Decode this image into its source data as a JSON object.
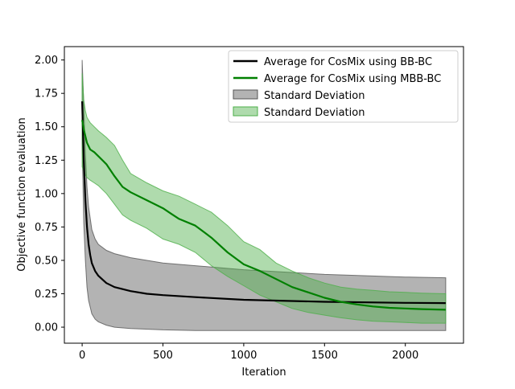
{
  "chart_data": {
    "type": "line",
    "xlabel": "Iteration",
    "ylabel": "Objective function evaluation",
    "xlim": [
      -110,
      2360
    ],
    "ylim": [
      -0.12,
      2.1
    ],
    "xticks": [
      0,
      500,
      1000,
      1500,
      2000
    ],
    "yticks": [
      0.0,
      0.25,
      0.5,
      0.75,
      1.0,
      1.25,
      1.5,
      1.75,
      2.0
    ],
    "xtick_labels": [
      "0",
      "500",
      "1000",
      "1500",
      "2000"
    ],
    "ytick_labels": [
      "0.00",
      "0.25",
      "0.50",
      "0.75",
      "1.00",
      "1.25",
      "1.50",
      "1.75",
      "2.00"
    ],
    "grid": false,
    "legend_position": "top-right",
    "series": [
      {
        "name": "Average for CosMix using BB-BC",
        "color": "#000000",
        "x": [
          0,
          10,
          20,
          30,
          40,
          50,
          60,
          80,
          100,
          150,
          200,
          300,
          400,
          500,
          700,
          1000,
          1500,
          2000,
          2250
        ],
        "values": [
          1.69,
          1.25,
          0.95,
          0.75,
          0.62,
          0.54,
          0.48,
          0.42,
          0.385,
          0.33,
          0.3,
          0.27,
          0.25,
          0.24,
          0.225,
          0.205,
          0.19,
          0.182,
          0.18
        ]
      },
      {
        "name": "Average for CosMix using MBB-BC",
        "color": "#008000",
        "x": [
          0,
          10,
          20,
          30,
          50,
          75,
          100,
          150,
          200,
          250,
          300,
          400,
          500,
          550,
          600,
          700,
          800,
          900,
          1000,
          1100,
          1200,
          1300,
          1400,
          1500,
          1600,
          1700,
          1800,
          1900,
          2000,
          2100,
          2250
        ],
        "values": [
          1.55,
          1.48,
          1.43,
          1.38,
          1.33,
          1.31,
          1.28,
          1.22,
          1.13,
          1.05,
          1.01,
          0.95,
          0.89,
          0.85,
          0.81,
          0.76,
          0.67,
          0.56,
          0.47,
          0.42,
          0.36,
          0.3,
          0.26,
          0.22,
          0.19,
          0.17,
          0.155,
          0.145,
          0.14,
          0.135,
          0.13
        ]
      }
    ],
    "bands": [
      {
        "name": "Standard Deviation",
        "color": "#808080",
        "x": [
          0,
          10,
          20,
          30,
          40,
          60,
          80,
          100,
          150,
          200,
          300,
          500,
          700,
          1000,
          1500,
          2000,
          2250
        ],
        "upper": [
          2.0,
          1.66,
          1.3,
          1.05,
          0.9,
          0.73,
          0.66,
          0.62,
          0.575,
          0.55,
          0.52,
          0.48,
          0.46,
          0.43,
          0.395,
          0.375,
          0.37
        ],
        "lower": [
          1.38,
          0.78,
          0.5,
          0.3,
          0.2,
          0.1,
          0.06,
          0.04,
          0.015,
          0.0,
          -0.01,
          -0.02,
          -0.025,
          -0.025,
          -0.025,
          -0.025,
          -0.025
        ]
      },
      {
        "name": "Standard Deviation",
        "color": "#4daf4a",
        "x": [
          0,
          10,
          20,
          30,
          50,
          75,
          100,
          150,
          200,
          250,
          300,
          400,
          500,
          600,
          700,
          800,
          900,
          1000,
          1100,
          1200,
          1300,
          1400,
          1500,
          1600,
          1700,
          1800,
          1900,
          2000,
          2100,
          2250
        ],
        "upper": [
          1.9,
          1.7,
          1.62,
          1.57,
          1.53,
          1.5,
          1.47,
          1.42,
          1.36,
          1.25,
          1.15,
          1.08,
          1.02,
          0.98,
          0.92,
          0.86,
          0.76,
          0.64,
          0.58,
          0.48,
          0.42,
          0.37,
          0.33,
          0.3,
          0.285,
          0.275,
          0.265,
          0.26,
          0.255,
          0.25
        ],
        "lower": [
          1.2,
          1.17,
          1.14,
          1.12,
          1.1,
          1.08,
          1.06,
          1.0,
          0.92,
          0.84,
          0.8,
          0.74,
          0.66,
          0.62,
          0.56,
          0.46,
          0.38,
          0.31,
          0.24,
          0.19,
          0.14,
          0.11,
          0.09,
          0.07,
          0.055,
          0.045,
          0.04,
          0.035,
          0.03,
          0.03
        ]
      }
    ]
  }
}
